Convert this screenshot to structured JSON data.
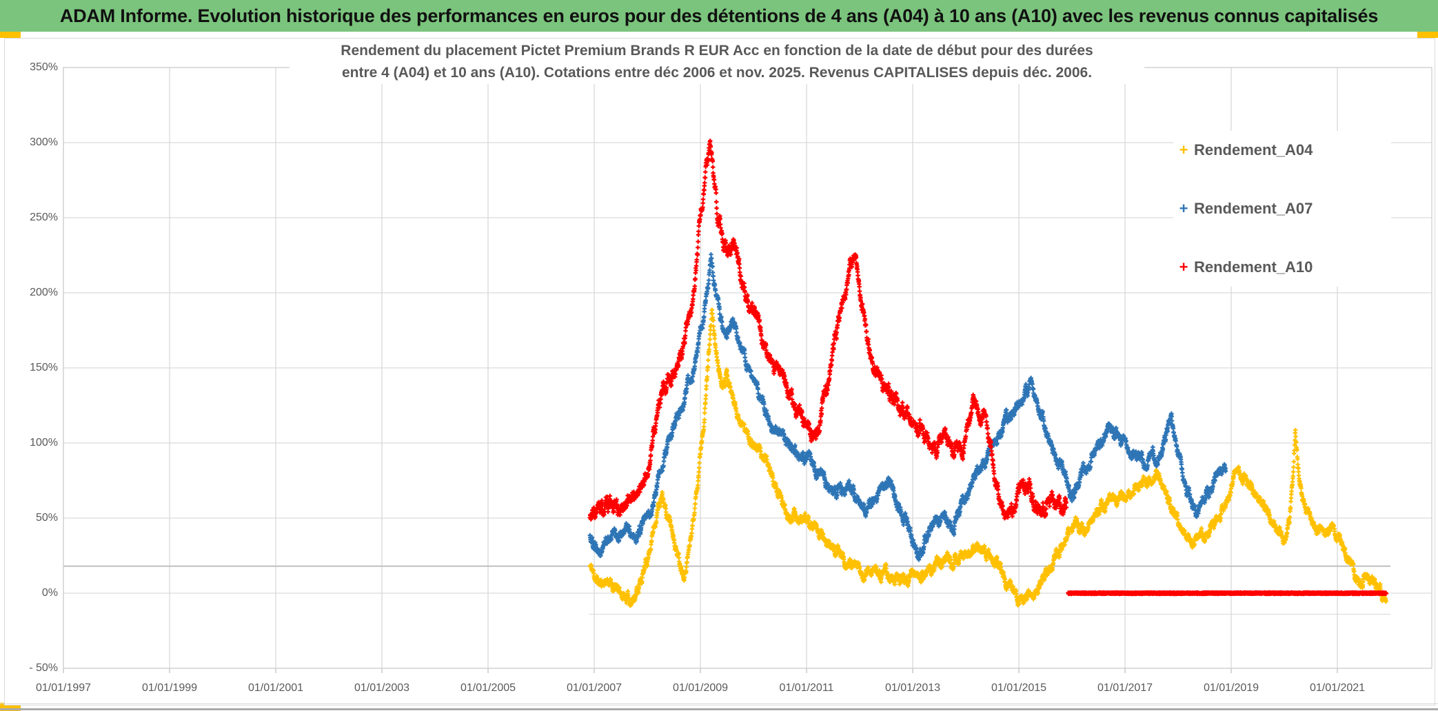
{
  "header": {
    "title": "ADAM Informe. Evolution historique des performances en euros pour des détentions de 4 ans (A04) à 10 ans (A10) avec les revenus connus capitalisés",
    "bg_color": "#7BC47D",
    "accent_color": "#FFC000"
  },
  "chart_data": {
    "type": "scatter",
    "title": "Rendement du placement Pictet Premium Brands R EUR Acc en fonction de la date de début pour des durées entre 4 (A04) et 10 ans (A10). Cotations entre déc 2006 et nov. 2025. Revenus CAPITALISES depuis déc. 2006.",
    "title_line1": "Rendement du placement Pictet Premium Brands R EUR Acc en fonction de la date de début pour des durées",
    "title_line2": "entre 4 (A04) et 10 ans (A10). Cotations entre déc 2006 et nov. 2025. Revenus CAPITALISES depuis déc. 2006.",
    "xlabel": "",
    "ylabel": "",
    "x_range_years": [
      1997.0,
      2022.8
    ],
    "ylim_percent": [
      -50,
      350
    ],
    "grid": true,
    "grid_color": "#d9d9d9",
    "text_color": "#595959",
    "y_ticks": [
      "350%",
      "300%",
      "250%",
      "200%",
      "150%",
      "100%",
      "50%",
      "0%",
      "- 50%"
    ],
    "y_tick_values": [
      350,
      300,
      250,
      200,
      150,
      100,
      50,
      0,
      -50
    ],
    "x_ticks": [
      "01/01/1997",
      "01/01/1999",
      "01/01/2001",
      "01/01/2003",
      "01/01/2005",
      "01/01/2007",
      "01/01/2009",
      "01/01/2011",
      "01/01/2013",
      "01/01/2015",
      "01/01/2017",
      "01/01/2019",
      "01/01/2021"
    ],
    "x_tick_years": [
      1997,
      1999,
      2001,
      2003,
      2005,
      2007,
      2009,
      2011,
      2013,
      2015,
      2017,
      2019,
      2021
    ],
    "legend_position": "right-top",
    "marker": "plus",
    "ref_lines": [
      {
        "value": 18,
        "from": 1997.0,
        "to": 2022.0,
        "color": "#bfbfbf",
        "width": 2
      },
      {
        "value": -14,
        "from": 2006.9,
        "to": 2022.0,
        "color": "#d8d8d8",
        "width": 1
      }
    ],
    "series": [
      {
        "name": "Rendement_A04",
        "color": "#FFC000",
        "keypoints": [
          [
            2006.92,
            18
          ],
          [
            2007.0,
            12
          ],
          [
            2007.1,
            6
          ],
          [
            2007.25,
            9
          ],
          [
            2007.4,
            3
          ],
          [
            2007.55,
            -2
          ],
          [
            2007.7,
            -5
          ],
          [
            2007.8,
            2
          ],
          [
            2007.9,
            10
          ],
          [
            2008.0,
            22
          ],
          [
            2008.1,
            40
          ],
          [
            2008.2,
            57
          ],
          [
            2008.28,
            63
          ],
          [
            2008.38,
            52
          ],
          [
            2008.5,
            38
          ],
          [
            2008.6,
            22
          ],
          [
            2008.7,
            15
          ],
          [
            2008.8,
            32
          ],
          [
            2008.9,
            58
          ],
          [
            2009.0,
            95
          ],
          [
            2009.1,
            130
          ],
          [
            2009.17,
            168
          ],
          [
            2009.22,
            188
          ],
          [
            2009.3,
            158
          ],
          [
            2009.4,
            140
          ],
          [
            2009.5,
            148
          ],
          [
            2009.6,
            132
          ],
          [
            2009.72,
            118
          ],
          [
            2009.85,
            108
          ],
          [
            2010.0,
            100
          ],
          [
            2010.15,
            93
          ],
          [
            2010.3,
            82
          ],
          [
            2010.45,
            68
          ],
          [
            2010.6,
            55
          ],
          [
            2010.75,
            52
          ],
          [
            2010.9,
            50
          ],
          [
            2011.05,
            46
          ],
          [
            2011.2,
            40
          ],
          [
            2011.35,
            34
          ],
          [
            2011.5,
            30
          ],
          [
            2011.65,
            26
          ],
          [
            2011.8,
            20
          ],
          [
            2011.95,
            16
          ],
          [
            2012.1,
            13
          ],
          [
            2012.25,
            16
          ],
          [
            2012.4,
            13
          ],
          [
            2012.55,
            11
          ],
          [
            2012.7,
            9
          ],
          [
            2012.85,
            8
          ],
          [
            2013.0,
            14
          ],
          [
            2013.15,
            11
          ],
          [
            2013.3,
            15
          ],
          [
            2013.45,
            19
          ],
          [
            2013.6,
            22
          ],
          [
            2013.75,
            19
          ],
          [
            2013.9,
            23
          ],
          [
            2014.05,
            27
          ],
          [
            2014.2,
            29
          ],
          [
            2014.35,
            30
          ],
          [
            2014.5,
            24
          ],
          [
            2014.65,
            15
          ],
          [
            2014.8,
            6
          ],
          [
            2014.95,
            -2
          ],
          [
            2015.1,
            -5
          ],
          [
            2015.25,
            -1
          ],
          [
            2015.4,
            7
          ],
          [
            2015.55,
            15
          ],
          [
            2015.7,
            24
          ],
          [
            2015.85,
            32
          ],
          [
            2016.0,
            42
          ],
          [
            2016.1,
            48
          ],
          [
            2016.25,
            43
          ],
          [
            2016.4,
            50
          ],
          [
            2016.55,
            57
          ],
          [
            2016.7,
            62
          ],
          [
            2016.85,
            60
          ],
          [
            2017.0,
            65
          ],
          [
            2017.15,
            69
          ],
          [
            2017.3,
            72
          ],
          [
            2017.45,
            76
          ],
          [
            2017.6,
            80
          ],
          [
            2017.75,
            70
          ],
          [
            2017.9,
            55
          ],
          [
            2018.05,
            42
          ],
          [
            2018.2,
            31
          ],
          [
            2018.35,
            40
          ],
          [
            2018.5,
            36
          ],
          [
            2018.65,
            46
          ],
          [
            2018.8,
            52
          ],
          [
            2018.95,
            62
          ],
          [
            2019.05,
            78
          ],
          [
            2019.15,
            81
          ],
          [
            2019.3,
            74
          ],
          [
            2019.45,
            67
          ],
          [
            2019.6,
            58
          ],
          [
            2019.75,
            50
          ],
          [
            2019.9,
            42
          ],
          [
            2020.0,
            35
          ],
          [
            2020.1,
            48
          ],
          [
            2020.17,
            85
          ],
          [
            2020.21,
            112
          ],
          [
            2020.26,
            85
          ],
          [
            2020.35,
            62
          ],
          [
            2020.5,
            50
          ],
          [
            2020.6,
            42
          ],
          [
            2020.7,
            46
          ],
          [
            2020.8,
            38
          ],
          [
            2020.92,
            46
          ],
          [
            2021.0,
            40
          ],
          [
            2021.1,
            30
          ],
          [
            2021.2,
            22
          ],
          [
            2021.3,
            14
          ],
          [
            2021.4,
            7
          ],
          [
            2021.5,
            9
          ],
          [
            2021.6,
            5
          ],
          [
            2021.7,
            8
          ],
          [
            2021.78,
            4
          ],
          [
            2021.85,
            -2
          ],
          [
            2021.92,
            -6
          ]
        ]
      },
      {
        "name": "Rendement_A07",
        "color": "#2E75B6",
        "keypoints": [
          [
            2006.92,
            38
          ],
          [
            2007.05,
            32
          ],
          [
            2007.2,
            35
          ],
          [
            2007.35,
            41
          ],
          [
            2007.5,
            37
          ],
          [
            2007.65,
            43
          ],
          [
            2007.8,
            40
          ],
          [
            2007.95,
            46
          ],
          [
            2008.1,
            58
          ],
          [
            2008.2,
            76
          ],
          [
            2008.35,
            94
          ],
          [
            2008.5,
            110
          ],
          [
            2008.65,
            124
          ],
          [
            2008.8,
            140
          ],
          [
            2008.95,
            162
          ],
          [
            2009.05,
            185
          ],
          [
            2009.15,
            208
          ],
          [
            2009.2,
            222
          ],
          [
            2009.3,
            196
          ],
          [
            2009.4,
            180
          ],
          [
            2009.5,
            170
          ],
          [
            2009.6,
            182
          ],
          [
            2009.7,
            170
          ],
          [
            2009.85,
            155
          ],
          [
            2010.0,
            140
          ],
          [
            2010.15,
            128
          ],
          [
            2010.3,
            117
          ],
          [
            2010.45,
            108
          ],
          [
            2010.6,
            100
          ],
          [
            2010.75,
            92
          ],
          [
            2010.9,
            88
          ],
          [
            2011.05,
            93
          ],
          [
            2011.2,
            82
          ],
          [
            2011.35,
            72
          ],
          [
            2011.5,
            65
          ],
          [
            2011.65,
            70
          ],
          [
            2011.8,
            76
          ],
          [
            2011.95,
            64
          ],
          [
            2012.1,
            56
          ],
          [
            2012.25,
            61
          ],
          [
            2012.4,
            68
          ],
          [
            2012.55,
            72
          ],
          [
            2012.7,
            62
          ],
          [
            2012.85,
            50
          ],
          [
            2013.0,
            36
          ],
          [
            2013.13,
            22
          ],
          [
            2013.3,
            42
          ],
          [
            2013.45,
            52
          ],
          [
            2013.6,
            48
          ],
          [
            2013.75,
            44
          ],
          [
            2013.9,
            58
          ],
          [
            2014.05,
            68
          ],
          [
            2014.2,
            77
          ],
          [
            2014.35,
            87
          ],
          [
            2014.5,
            98
          ],
          [
            2014.65,
            108
          ],
          [
            2014.8,
            116
          ],
          [
            2014.95,
            123
          ],
          [
            2015.1,
            132
          ],
          [
            2015.22,
            137
          ],
          [
            2015.4,
            120
          ],
          [
            2015.55,
            102
          ],
          [
            2015.7,
            90
          ],
          [
            2015.85,
            80
          ],
          [
            2016.0,
            66
          ],
          [
            2016.15,
            75
          ],
          [
            2016.3,
            86
          ],
          [
            2016.45,
            96
          ],
          [
            2016.6,
            105
          ],
          [
            2016.75,
            108
          ],
          [
            2016.9,
            106
          ],
          [
            2017.05,
            96
          ],
          [
            2017.2,
            90
          ],
          [
            2017.35,
            88
          ],
          [
            2017.5,
            94
          ],
          [
            2017.65,
            90
          ],
          [
            2017.8,
            108
          ],
          [
            2017.87,
            116
          ],
          [
            2017.97,
            95
          ],
          [
            2018.1,
            75
          ],
          [
            2018.25,
            60
          ],
          [
            2018.38,
            54
          ],
          [
            2018.5,
            66
          ],
          [
            2018.65,
            74
          ],
          [
            2018.8,
            86
          ],
          [
            2018.9,
            82
          ]
        ]
      },
      {
        "name": "Rendement_A10",
        "color": "#FF0000",
        "keypoints": [
          [
            2006.92,
            50
          ],
          [
            2007.05,
            53
          ],
          [
            2007.2,
            55
          ],
          [
            2007.35,
            57
          ],
          [
            2007.5,
            55
          ],
          [
            2007.62,
            62
          ],
          [
            2007.75,
            65
          ],
          [
            2007.88,
            70
          ],
          [
            2008.0,
            80
          ],
          [
            2008.1,
            100
          ],
          [
            2008.2,
            120
          ],
          [
            2008.32,
            135
          ],
          [
            2008.45,
            145
          ],
          [
            2008.6,
            155
          ],
          [
            2008.74,
            172
          ],
          [
            2008.88,
            195
          ],
          [
            2009.0,
            250
          ],
          [
            2009.1,
            278
          ],
          [
            2009.18,
            300
          ],
          [
            2009.25,
            280
          ],
          [
            2009.32,
            248
          ],
          [
            2009.42,
            235
          ],
          [
            2009.52,
            224
          ],
          [
            2009.62,
            238
          ],
          [
            2009.72,
            220
          ],
          [
            2009.82,
            205
          ],
          [
            2009.95,
            190
          ],
          [
            2010.1,
            178
          ],
          [
            2010.25,
            162
          ],
          [
            2010.4,
            150
          ],
          [
            2010.55,
            142
          ],
          [
            2010.7,
            132
          ],
          [
            2010.85,
            123
          ],
          [
            2011.0,
            112
          ],
          [
            2011.1,
            102
          ],
          [
            2011.25,
            115
          ],
          [
            2011.4,
            142
          ],
          [
            2011.55,
            172
          ],
          [
            2011.7,
            196
          ],
          [
            2011.85,
            220
          ],
          [
            2011.92,
            226
          ],
          [
            2012.0,
            202
          ],
          [
            2012.12,
            172
          ],
          [
            2012.25,
            152
          ],
          [
            2012.4,
            142
          ],
          [
            2012.55,
            133
          ],
          [
            2012.7,
            128
          ],
          [
            2012.85,
            122
          ],
          [
            2013.0,
            116
          ],
          [
            2013.15,
            108
          ],
          [
            2013.3,
            101
          ],
          [
            2013.45,
            96
          ],
          [
            2013.6,
            107
          ],
          [
            2013.75,
            98
          ],
          [
            2013.9,
            93
          ],
          [
            2014.05,
            115
          ],
          [
            2014.2,
            128
          ],
          [
            2014.32,
            120
          ],
          [
            2014.45,
            100
          ],
          [
            2014.6,
            70
          ],
          [
            2014.75,
            50
          ],
          [
            2014.9,
            56
          ],
          [
            2015.05,
            70
          ],
          [
            2015.2,
            74
          ],
          [
            2015.35,
            56
          ],
          [
            2015.5,
            60
          ],
          [
            2015.65,
            64
          ],
          [
            2015.8,
            52
          ],
          [
            2015.9,
            58
          ]
        ],
        "flat_zero_from": 2015.93,
        "flat_zero_to": 2021.92
      }
    ]
  }
}
